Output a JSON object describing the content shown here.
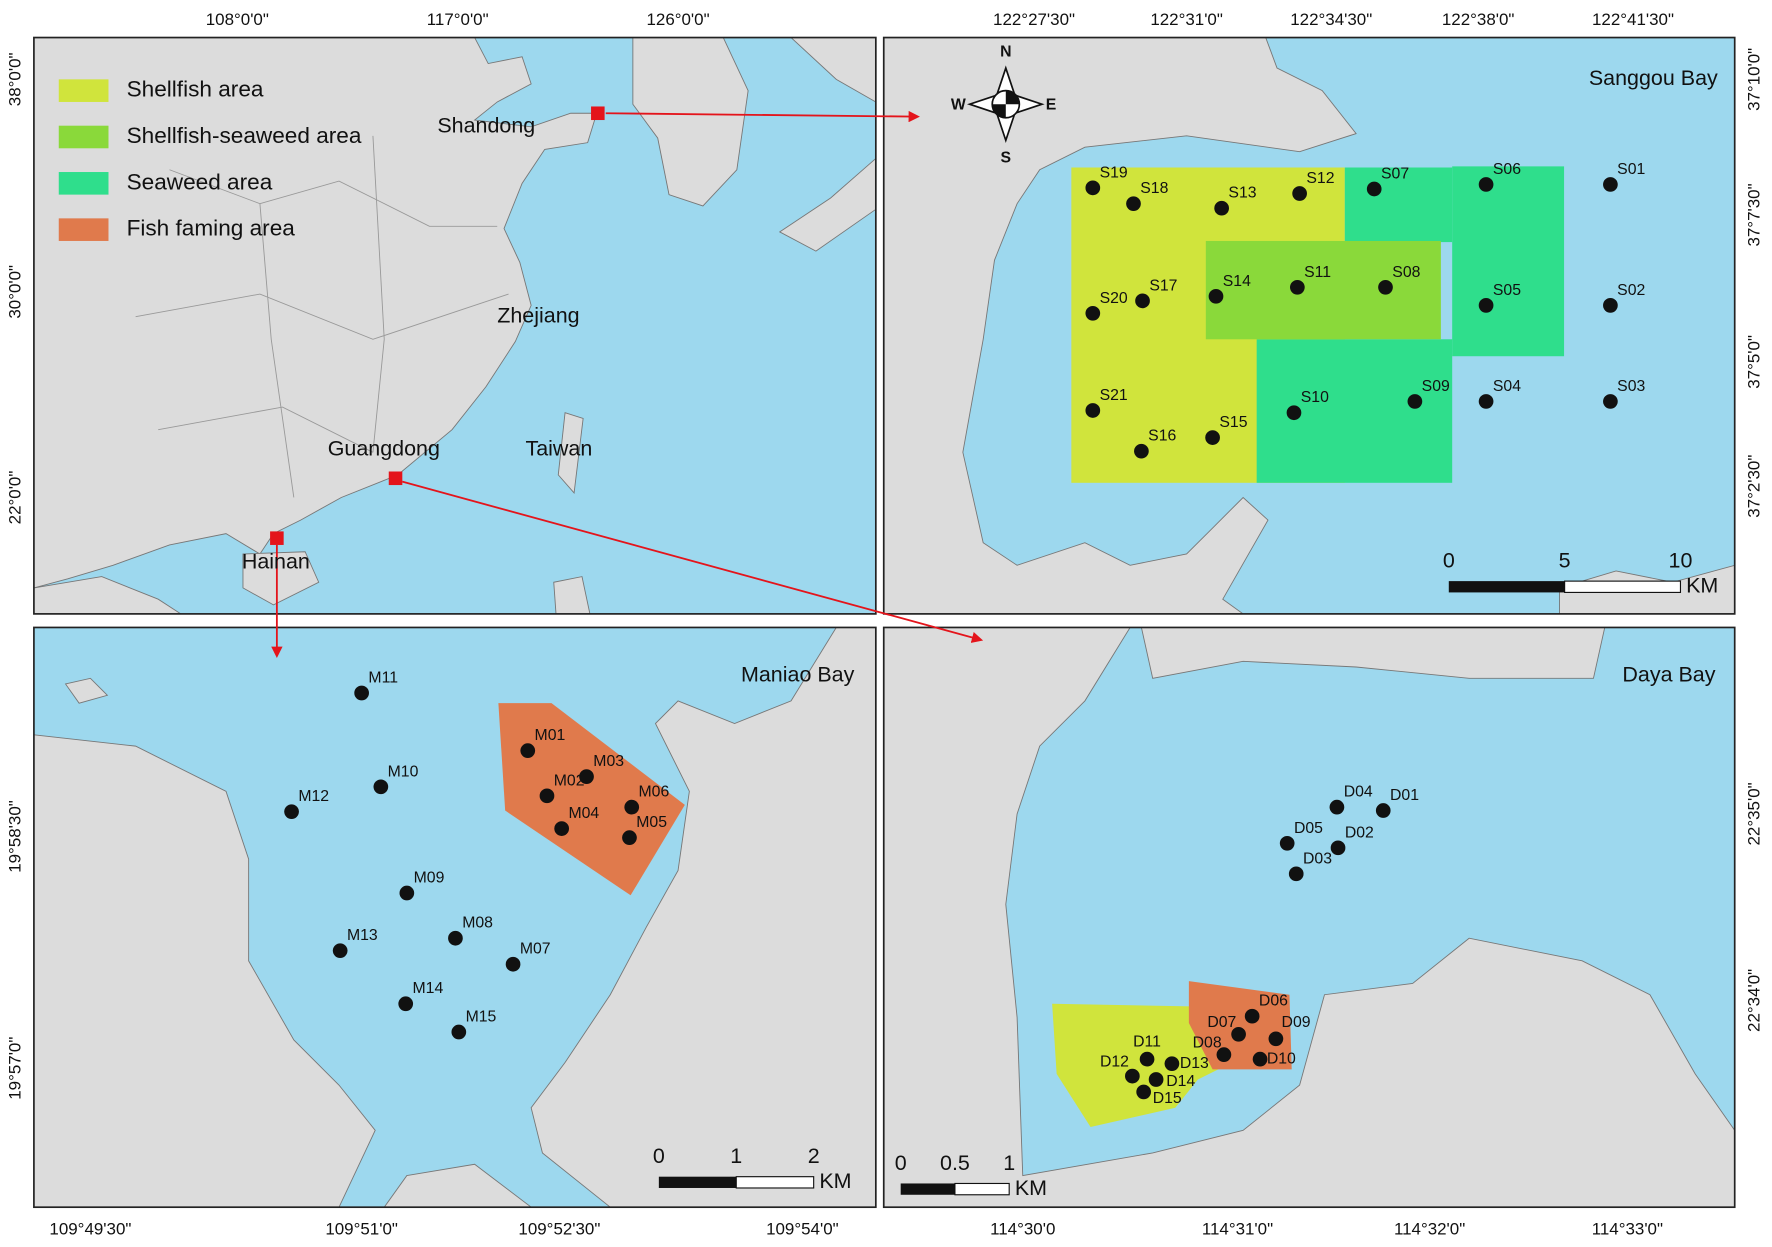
{
  "legend": [
    {
      "label": "Shellfish area",
      "color": "#d0e43c"
    },
    {
      "label": "Shellfish-seaweed area",
      "color": "#8ad93a"
    },
    {
      "label": "Seaweed area",
      "color": "#2fde8c"
    },
    {
      "label": "Fish faming area",
      "color": "#e07a4c"
    }
  ],
  "china": {
    "labels": [
      "Shandong",
      "Zhejiang",
      "Guangdong",
      "Taiwan",
      "Hainan"
    ],
    "lon_ticks": [
      "108°0'0\"",
      "117°0'0\"",
      "126°0'0\""
    ],
    "lat_ticks": [
      "38°0'0\"",
      "30°0'0\"",
      "22°0'0\""
    ]
  },
  "sanggou": {
    "title": "Sanggou Bay",
    "compass": [
      "N",
      "S",
      "E",
      "W"
    ],
    "stations": [
      "S19",
      "S18",
      "S13",
      "S12",
      "S07",
      "S06",
      "S01",
      "S20",
      "S17",
      "S14",
      "S11",
      "S08",
      "S05",
      "S02",
      "S21",
      "S16",
      "S15",
      "S10",
      "S09",
      "S04",
      "S03"
    ],
    "lon_ticks": [
      "122°27'30\"",
      "122°31'0\"",
      "122°34'30\"",
      "122°38'0\"",
      "122°41'30\""
    ],
    "lat_ticks": [
      "37°10'0\"",
      "37°7'30\"",
      "37°5'0\"",
      "37°2'30\""
    ],
    "scale": {
      "ticks": [
        0,
        5,
        10
      ],
      "unit": "KM"
    }
  },
  "maniao": {
    "title": "Maniao Bay",
    "stations": [
      "M11",
      "M10",
      "M12",
      "M09",
      "M13",
      "M08",
      "M07",
      "M14",
      "M15",
      "M01",
      "M02",
      "M03",
      "M04",
      "M05",
      "M06"
    ],
    "lon_ticks": [
      "109°49'30\"",
      "109°51'0\"",
      "109°52'30\"",
      "109°54'0\""
    ],
    "lat_ticks": [
      "19°58'30\"",
      "19°57'0\""
    ],
    "scale": {
      "ticks": [
        0,
        1,
        2
      ],
      "unit": "KM"
    }
  },
  "daya": {
    "title": "Daya Bay",
    "stations": [
      "D01",
      "D04",
      "D05",
      "D02",
      "D03",
      "D06",
      "D07",
      "D09",
      "D08",
      "D10",
      "D11",
      "D13",
      "D12",
      "D14",
      "D15"
    ],
    "lon_ticks": [
      "114°30'0",
      "114°31'0\"",
      "114°32'0\"",
      "114°33'0\""
    ],
    "lat_ticks": [
      "22°35'0\"",
      "22°34'0\""
    ],
    "scale": {
      "ticks": [
        0,
        0.5,
        1
      ],
      "unit": "KM"
    }
  }
}
